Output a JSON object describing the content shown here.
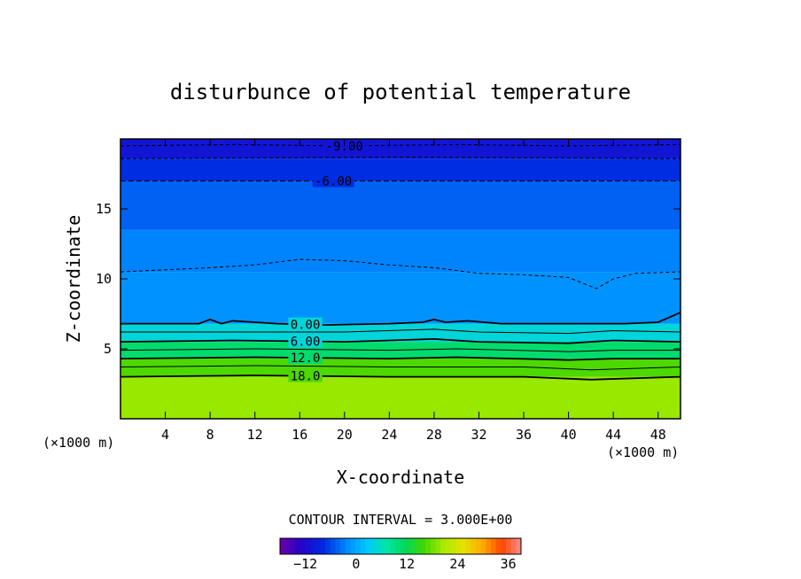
{
  "chart_data": {
    "type": "heatmap",
    "title": "disturbunce of potential temperature",
    "xlabel": "X-coordinate",
    "ylabel": "Z-coordinate",
    "x_unit": "(×1000 m)",
    "y_unit": "(×1000 m)",
    "xlim": [
      0,
      50
    ],
    "ylim": [
      0,
      20
    ],
    "x_ticks": [
      4,
      8,
      12,
      16,
      20,
      24,
      28,
      32,
      36,
      40,
      44,
      48
    ],
    "y_ticks": [
      5,
      10,
      15
    ],
    "contour_interval_text": "CONTOUR INTERVAL = 3.000E+00",
    "colorbar": {
      "min": -18,
      "max": 39,
      "ticks": [
        -12,
        0,
        12,
        24,
        36
      ]
    },
    "layers": [
      {
        "z_bottom": 0,
        "z_top": 3,
        "value": 20
      },
      {
        "z_bottom": 3,
        "z_top": 4.3,
        "value": 16.5
      },
      {
        "z_bottom": 4.3,
        "z_top": 5.5,
        "value": 10.5
      },
      {
        "z_bottom": 5.5,
        "z_top": 6.8,
        "value": 4.5
      },
      {
        "z_bottom": 6.8,
        "z_top": 10.5,
        "value": -1.5
      },
      {
        "z_bottom": 10.5,
        "z_top": 13.5,
        "value": -2.5
      },
      {
        "z_bottom": 13.5,
        "z_top": 17,
        "value": -4.5
      },
      {
        "z_bottom": 17,
        "z_top": 18.6,
        "value": -7.5
      },
      {
        "z_bottom": 18.6,
        "z_top": 20,
        "value": -10.5
      }
    ],
    "contour_lines": [
      {
        "value": -9,
        "label": "-9.00",
        "dashed": true,
        "label_x": 20,
        "points": [
          [
            0,
            19.5
          ],
          [
            10,
            19.6
          ],
          [
            20,
            19.5
          ],
          [
            30,
            19.6
          ],
          [
            40,
            19.5
          ],
          [
            50,
            19.6
          ]
        ]
      },
      {
        "value": -7.5,
        "label": "",
        "dashed": true,
        "label_x": null,
        "points": [
          [
            0,
            18.6
          ],
          [
            25,
            18.7
          ],
          [
            50,
            18.6
          ]
        ]
      },
      {
        "value": -6,
        "label": "-6.00",
        "dashed": true,
        "label_x": 19,
        "points": [
          [
            0,
            17.0
          ],
          [
            25,
            17.0
          ],
          [
            50,
            17.0
          ]
        ]
      },
      {
        "value": -3,
        "label": "",
        "dashed": true,
        "label_x": null,
        "points": [
          [
            0,
            10.5
          ],
          [
            8,
            10.8
          ],
          [
            12,
            11.0
          ],
          [
            16,
            11.4
          ],
          [
            20,
            11.3
          ],
          [
            24,
            11.0
          ],
          [
            28,
            10.8
          ],
          [
            32,
            10.4
          ],
          [
            36,
            10.3
          ],
          [
            40,
            10.1
          ],
          [
            42.5,
            9.3
          ],
          [
            44,
            10.0
          ],
          [
            46,
            10.4
          ],
          [
            50,
            10.5
          ]
        ]
      },
      {
        "value": 0,
        "label": "0.00",
        "dashed": false,
        "label_x": 16.5,
        "points": [
          [
            0,
            6.8
          ],
          [
            7,
            6.8
          ],
          [
            8,
            7.1
          ],
          [
            9,
            6.8
          ],
          [
            10,
            7.0
          ],
          [
            14,
            6.8
          ],
          [
            18,
            6.7
          ],
          [
            24,
            6.8
          ],
          [
            27,
            6.9
          ],
          [
            28,
            7.1
          ],
          [
            29,
            6.9
          ],
          [
            31,
            7.0
          ],
          [
            34,
            6.8
          ],
          [
            40,
            6.8
          ],
          [
            45,
            6.8
          ],
          [
            48,
            6.9
          ],
          [
            50,
            7.6
          ]
        ]
      },
      {
        "value": 3,
        "label": "",
        "dashed": false,
        "label_x": null,
        "points": [
          [
            0,
            6.2
          ],
          [
            10,
            6.2
          ],
          [
            20,
            6.2
          ],
          [
            28,
            6.4
          ],
          [
            32,
            6.2
          ],
          [
            40,
            6.1
          ],
          [
            44,
            6.3
          ],
          [
            50,
            6.2
          ]
        ]
      },
      {
        "value": 6,
        "label": "6.00",
        "dashed": false,
        "label_x": 16.5,
        "points": [
          [
            0,
            5.5
          ],
          [
            10,
            5.6
          ],
          [
            20,
            5.5
          ],
          [
            28,
            5.7
          ],
          [
            32,
            5.5
          ],
          [
            40,
            5.4
          ],
          [
            44,
            5.6
          ],
          [
            50,
            5.5
          ]
        ]
      },
      {
        "value": 9,
        "label": "",
        "dashed": false,
        "label_x": null,
        "points": [
          [
            0,
            4.9
          ],
          [
            12,
            5.0
          ],
          [
            24,
            4.9
          ],
          [
            30,
            5.0
          ],
          [
            40,
            4.8
          ],
          [
            44,
            4.9
          ],
          [
            50,
            4.9
          ]
        ]
      },
      {
        "value": 12,
        "label": "12.0",
        "dashed": false,
        "label_x": 16.5,
        "points": [
          [
            0,
            4.3
          ],
          [
            12,
            4.4
          ],
          [
            24,
            4.3
          ],
          [
            30,
            4.4
          ],
          [
            40,
            4.2
          ],
          [
            44,
            4.3
          ],
          [
            50,
            4.3
          ]
        ]
      },
      {
        "value": 15,
        "label": "",
        "dashed": false,
        "label_x": null,
        "points": [
          [
            0,
            3.7
          ],
          [
            12,
            3.8
          ],
          [
            24,
            3.7
          ],
          [
            36,
            3.7
          ],
          [
            42,
            3.5
          ],
          [
            50,
            3.7
          ]
        ]
      },
      {
        "value": 18,
        "label": "18.0",
        "dashed": false,
        "label_x": 16.5,
        "points": [
          [
            0,
            3.0
          ],
          [
            12,
            3.1
          ],
          [
            24,
            3.0
          ],
          [
            36,
            3.0
          ],
          [
            42,
            2.8
          ],
          [
            50,
            3.0
          ]
        ]
      }
    ]
  }
}
